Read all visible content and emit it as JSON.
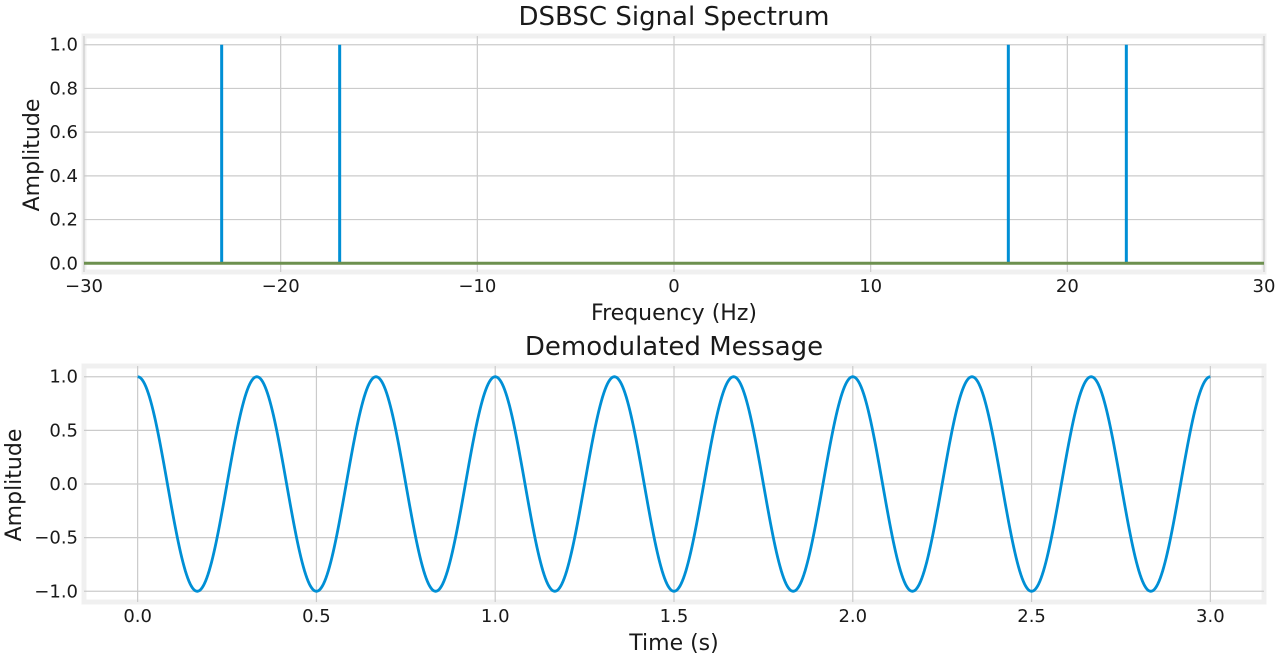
{
  "chart_data": [
    {
      "type": "line",
      "title": "DSBSC Signal Spectrum",
      "xlabel": "Frequency (Hz)",
      "ylabel": "Amplitude",
      "xlim": [
        -30,
        30
      ],
      "ylim": [
        -0.04,
        1.04
      ],
      "xticks": [
        -30,
        -20,
        -10,
        0,
        10,
        20,
        30
      ],
      "xtick_labels": [
        "−30",
        "−20",
        "−10",
        "0",
        "10",
        "20",
        "30"
      ],
      "yticks": [
        0,
        0.2,
        0.4,
        0.6,
        0.8,
        1.0
      ],
      "ytick_labels": [
        "0.0",
        "0.2",
        "0.4",
        "0.6",
        "0.8",
        "1.0"
      ],
      "grid": true,
      "series": [
        {
          "color": "#008fd5",
          "style": "stem",
          "x": [
            -23,
            -17,
            17,
            23
          ],
          "y": [
            1.0,
            1.0,
            1.0,
            1.0
          ]
        },
        {
          "color": "#6d904f",
          "style": "line",
          "x": [
            -30,
            30
          ],
          "y": [
            0,
            0
          ]
        }
      ]
    },
    {
      "type": "line",
      "title": "Demodulated Message",
      "xlabel": "Time (s)",
      "ylabel": "Amplitude",
      "xlim": [
        -0.15,
        3.15
      ],
      "ylim": [
        -1.1,
        1.1
      ],
      "xticks": [
        0,
        0.5,
        1.0,
        1.5,
        2.0,
        2.5,
        3.0
      ],
      "xtick_labels": [
        "0.0",
        "0.5",
        "1.0",
        "1.5",
        "2.0",
        "2.5",
        "3.0"
      ],
      "yticks": [
        -1.0,
        -0.5,
        0,
        0.5,
        1.0
      ],
      "ytick_labels": [
        "−1.0",
        "−0.5",
        "0.0",
        "0.5",
        "1.0"
      ],
      "grid": true,
      "series": [
        {
          "color": "#008fd5",
          "style": "line",
          "function": "cos",
          "amplitude": 1.0,
          "frequency_hz": 3,
          "t_range": [
            0,
            3
          ]
        }
      ]
    }
  ]
}
